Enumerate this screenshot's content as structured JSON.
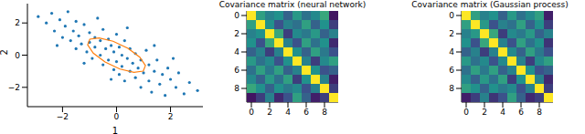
{
  "chart_data": [
    {
      "type": "scatter",
      "x_label": "1",
      "y_label": "2",
      "xlim": [
        -3.3,
        3.2
      ],
      "ylim": [
        -3.2,
        3.2
      ],
      "xticks": [
        {
          "value": -2,
          "label": "−2"
        },
        0,
        2
      ],
      "yticks": [
        {
          "value": -2,
          "label": "−2"
        },
        0,
        2
      ],
      "series": [
        {
          "type": "scatter",
          "color": "#1f77b4",
          "x": [
            -2.9,
            -2.6,
            -2.4,
            -2.3,
            -2.1,
            -2.0,
            -1.9,
            -1.8,
            -1.7,
            -1.6,
            -1.5,
            -1.5,
            -1.4,
            -1.3,
            -1.2,
            -1.1,
            -1.0,
            -1.0,
            -0.9,
            -0.8,
            -0.8,
            -0.7,
            -0.6,
            -0.6,
            -0.5,
            -0.5,
            -0.4,
            -0.3,
            -0.3,
            -0.2,
            -0.1,
            -0.1,
            0.0,
            0.0,
            0.1,
            0.1,
            0.2,
            0.2,
            0.3,
            0.3,
            0.4,
            0.5,
            0.5,
            0.6,
            0.7,
            0.7,
            0.8,
            0.9,
            0.9,
            1.0,
            1.1,
            1.2,
            1.2,
            1.3,
            1.4,
            1.5,
            1.6,
            1.7,
            1.8,
            1.9,
            2.0,
            2.2,
            2.3,
            2.5,
            2.7,
            3.0,
            -2.2,
            2.1,
            -0.2,
            0.4,
            -1.2,
            1.4
          ],
          "y": [
            2.4,
            2.0,
            2.6,
            1.5,
            2.2,
            1.1,
            1.8,
            2.7,
            0.9,
            1.5,
            2.1,
            0.4,
            1.2,
            0.7,
            1.9,
            0.2,
            1.4,
            0.8,
            -0.2,
            1.1,
            0.5,
            2.3,
            0.0,
            0.9,
            1.6,
            -0.6,
            0.4,
            1.0,
            -0.3,
            0.6,
            -0.9,
            0.2,
            1.3,
            -0.4,
            0.5,
            -1.2,
            0.0,
            -0.7,
            0.9,
            -1.6,
            -0.2,
            -1.0,
            0.4,
            -0.5,
            -1.4,
            0.1,
            -0.8,
            -2.0,
            -0.3,
            -1.1,
            0.3,
            -1.6,
            -0.6,
            -2.3,
            -1.0,
            -0.3,
            -1.8,
            -1.2,
            -2.5,
            -0.8,
            -1.5,
            -2.0,
            -1.1,
            -2.4,
            -1.7,
            -2.2,
            0.6,
            -0.2,
            -1.5,
            1.7,
            -0.5,
            0.6
          ]
        },
        {
          "type": "line",
          "color": "#ff7f0e",
          "x": [
            0.99,
            1.07,
            0.862,
            0.424,
            -0.128,
            -0.645,
            -0.99,
            -1.07,
            -0.862,
            -0.424,
            0.128,
            0.645,
            0.99
          ],
          "y": [
            -0.99,
            -0.645,
            -0.128,
            0.424,
            0.862,
            1.07,
            0.99,
            0.645,
            0.128,
            -0.424,
            -0.862,
            -1.07,
            -0.99
          ]
        }
      ]
    },
    {
      "type": "heatmap",
      "title": "Covariance matrix (neural network)",
      "xlim": [
        -0.5,
        9.5
      ],
      "ylim": [
        -0.5,
        9.5
      ],
      "xticks": [
        0,
        2,
        4,
        6,
        8
      ],
      "yticks": [
        0,
        2,
        4,
        6,
        8
      ],
      "color_range": [
        -0.6,
        1
      ],
      "cells": [
        [
          1,
          0.3,
          0.1,
          0.2,
          -0.1,
          0.25,
          0,
          0.15,
          0.35,
          -0.5
        ],
        [
          0.3,
          1,
          0.2,
          -0.2,
          0.1,
          0,
          0.3,
          -0.1,
          0.2,
          -0.3
        ],
        [
          0.1,
          0.2,
          1,
          0.35,
          -0.3,
          0.15,
          0.05,
          0.25,
          -0.1,
          0.1
        ],
        [
          0.2,
          -0.2,
          0.35,
          1,
          0.1,
          -0.2,
          0.3,
          0,
          0.2,
          -0.4
        ],
        [
          -0.1,
          0.1,
          -0.3,
          0.1,
          1,
          0.2,
          -0.1,
          0.3,
          0.05,
          -0.2
        ],
        [
          0.25,
          0,
          0.15,
          -0.2,
          0.2,
          1,
          0.1,
          -0.3,
          0.15,
          0.3
        ],
        [
          0,
          0.3,
          0.05,
          0.3,
          -0.1,
          0.1,
          1,
          0.2,
          -0.2,
          -0.1
        ],
        [
          0.15,
          -0.1,
          0.25,
          0,
          0.3,
          -0.3,
          0.2,
          1,
          0.1,
          -0.45
        ],
        [
          0.35,
          0.2,
          -0.1,
          0.2,
          0.05,
          0.15,
          -0.2,
          0.1,
          1,
          -0.3
        ],
        [
          -0.5,
          -0.3,
          0.1,
          -0.4,
          -0.2,
          0.3,
          -0.1,
          -0.45,
          -0.3,
          1
        ]
      ]
    },
    {
      "type": "heatmap",
      "title": "Covariance matrix (Gaussian process)",
      "xlim": [
        -0.5,
        9.5
      ],
      "ylim": [
        -0.5,
        9.5
      ],
      "xticks": [
        0,
        2,
        4,
        6,
        8
      ],
      "yticks": [
        0,
        2,
        4,
        6,
        8
      ],
      "color_range": [
        -0.6,
        1
      ],
      "cells": [
        [
          1,
          0.3,
          0.1,
          0.2,
          -0.1,
          0.25,
          0,
          0.15,
          0.3,
          -0.45
        ],
        [
          0.3,
          1,
          0.25,
          -0.2,
          0.1,
          0,
          0.3,
          -0.1,
          0.2,
          -0.3
        ],
        [
          0.1,
          0.25,
          1,
          0.35,
          -0.3,
          0.15,
          0.05,
          0.25,
          -0.1,
          0.1
        ],
        [
          0.2,
          -0.2,
          0.35,
          1,
          0.1,
          -0.2,
          0.3,
          0,
          0.2,
          -0.35
        ],
        [
          -0.1,
          0.1,
          -0.3,
          0.1,
          1,
          0.15,
          -0.1,
          0.3,
          0.05,
          -0.2
        ],
        [
          0.25,
          0,
          0.15,
          -0.2,
          0.15,
          1,
          0.1,
          -0.3,
          0.15,
          0.3
        ],
        [
          0,
          0.3,
          0.05,
          0.3,
          -0.1,
          0.1,
          1,
          0.2,
          -0.2,
          -0.1
        ],
        [
          0.15,
          -0.1,
          0.25,
          0,
          0.3,
          -0.3,
          0.2,
          1,
          0.1,
          -0.4
        ],
        [
          0.3,
          0.2,
          -0.1,
          0.2,
          0.05,
          0.15,
          -0.2,
          0.1,
          1,
          -0.3
        ],
        [
          -0.45,
          -0.3,
          0.1,
          -0.35,
          -0.2,
          0.3,
          -0.1,
          -0.4,
          -0.3,
          1
        ]
      ]
    }
  ]
}
